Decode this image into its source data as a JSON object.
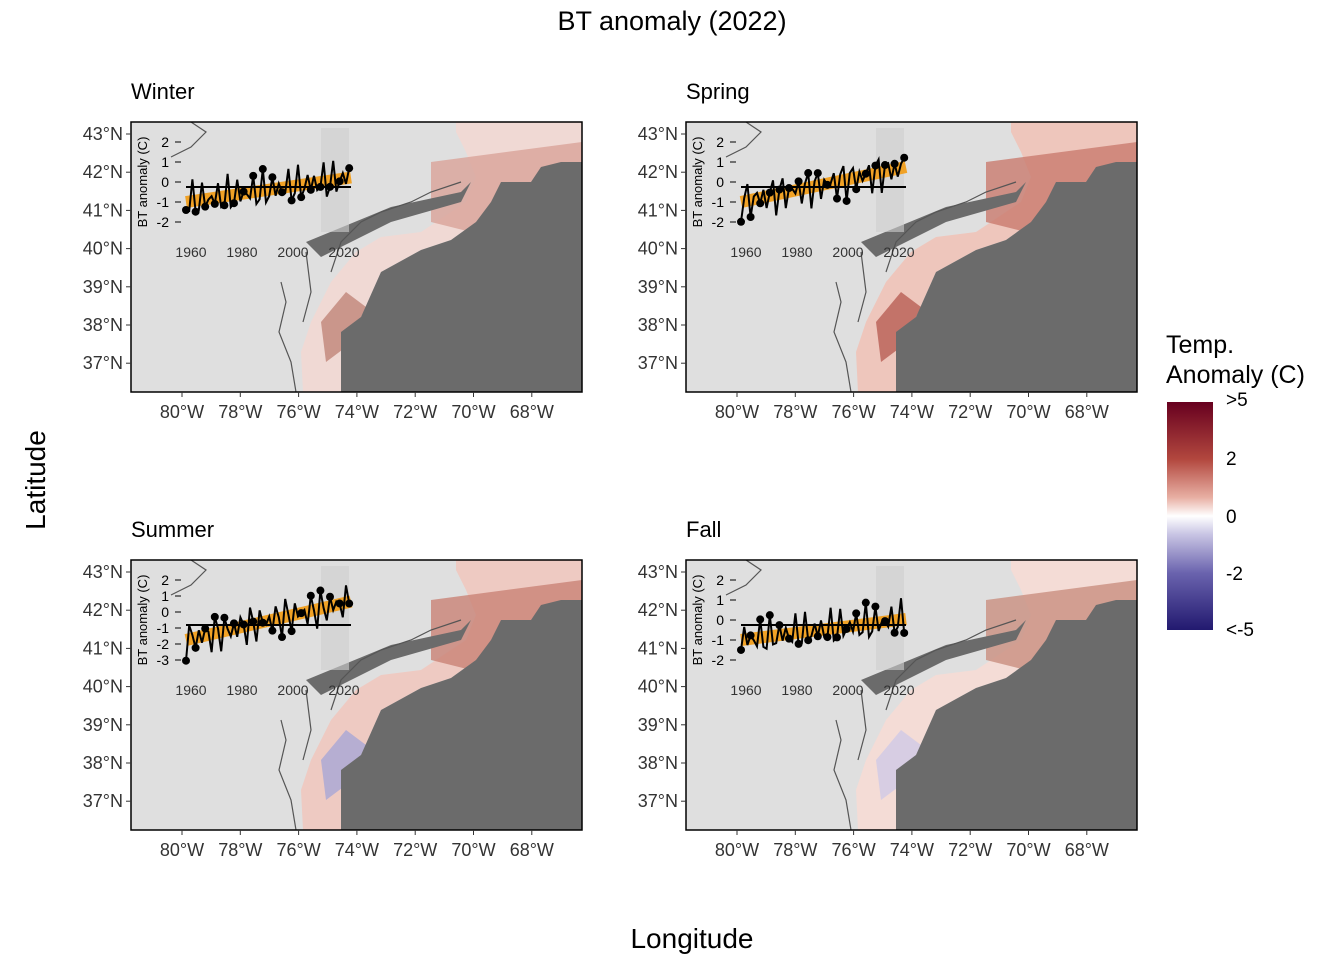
{
  "title": "BT anomaly (2022)",
  "x_axis_label": "Longitude",
  "y_axis_label": "Latitude",
  "legend": {
    "title_line1": "Temp.",
    "title_line2": "Anomaly (C)",
    "labels": [
      ">5",
      "2",
      "0",
      "-2",
      "<-5"
    ],
    "colors": {
      "high": "#67001f",
      "mid": "#ffffff",
      "low": "#22196f"
    }
  },
  "colors": {
    "land": "#6b6b6b",
    "panel_background": "#dfdfdf",
    "trend_line": "#f39c12",
    "series": "#000000"
  },
  "map_axes": {
    "lat_ticks": [
      "43°N",
      "42°N",
      "41°N",
      "40°N",
      "39°N",
      "38°N",
      "37°N"
    ],
    "lon_ticks": [
      "80°W",
      "78°W",
      "76°W",
      "74°W",
      "72°W",
      "70°W",
      "68°W"
    ]
  },
  "inset_axes": {
    "ylabel": "BT anomaly (C)",
    "x_ticks": [
      "1960",
      "1980",
      "2000",
      "2020"
    ]
  },
  "panels": [
    {
      "season": "Winter",
      "inset_y_ticks": [
        "2",
        "1",
        "0",
        "-1",
        "-2"
      ]
    },
    {
      "season": "Spring",
      "inset_y_ticks": [
        "2",
        "1",
        "0",
        "-1",
        "-2"
      ]
    },
    {
      "season": "Summer",
      "inset_y_ticks": [
        "2",
        "1",
        "0",
        "-1",
        "-2",
        "-3"
      ]
    },
    {
      "season": "Fall",
      "inset_y_ticks": [
        "2",
        "1",
        "0",
        "-1",
        "-2"
      ]
    }
  ]
}
